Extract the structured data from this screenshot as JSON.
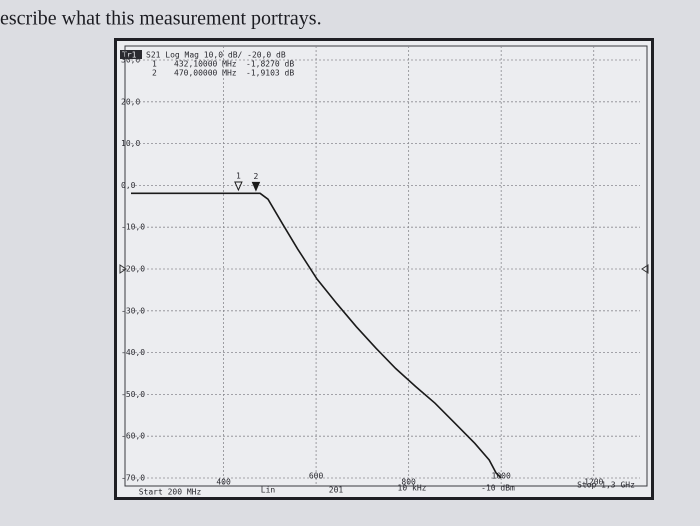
{
  "chart_data": {
    "type": "line",
    "title": "escribe what this measurement portrays.",
    "trace_label": "Tr1",
    "header": "S21 Log Mag 10,0 dB/ -20,0 dB",
    "readouts": [
      [
        "1",
        "432,10000 MHz",
        "-1,8270 dB"
      ],
      [
        "2",
        "470,00000 MHz",
        "-1,9103 dB"
      ]
    ],
    "x": [
      200,
      300,
      400,
      479,
      496,
      528,
      560,
      602,
      645,
      687,
      730,
      772,
      815,
      857,
      900,
      943,
      974,
      989,
      1000
    ],
    "series": [
      {
        "color": "#1a1a1a",
        "values": [
          -1.9,
          -1.9,
          -1.9,
          -1.9,
          -3.3,
          -9.3,
          -15.2,
          -22.4,
          -28.3,
          -33.8,
          -39,
          -43.8,
          -48.1,
          -52.1,
          -56.9,
          -61.7,
          -65.7,
          -68.8,
          -70
        ]
      }
    ],
    "markers": [
      {
        "label": "1",
        "x": 432.1,
        "y": -1.827
      },
      {
        "label": "2",
        "x": 470,
        "y": -1.9103
      }
    ],
    "xlim": [
      200,
      1300
    ],
    "ylim": [
      -70,
      30
    ],
    "xticks": [
      400,
      600,
      800,
      1000,
      1200
    ],
    "yticks": [
      {
        "value": 30,
        "label": "30,0"
      },
      {
        "value": 20,
        "label": "20,0"
      },
      {
        "value": 10,
        "label": "10,0"
      },
      {
        "value": 0,
        "label": "0,0"
      },
      {
        "value": -10,
        "label": "-10,0"
      },
      {
        "value": -20,
        "label": "-20,0"
      },
      {
        "value": -30,
        "label": "-30,0"
      },
      {
        "value": -40,
        "label": "-40,0"
      },
      {
        "value": -50,
        "label": "-50,0"
      },
      {
        "value": -60,
        "label": "-60,0"
      },
      {
        "value": -70,
        "label": "-70,0"
      }
    ],
    "footer": [
      "Start 200 MHz",
      "Lin",
      "201",
      "10 kHz",
      "-10 dBm",
      "Stop 1,3 GHz"
    ],
    "grid": true
  }
}
